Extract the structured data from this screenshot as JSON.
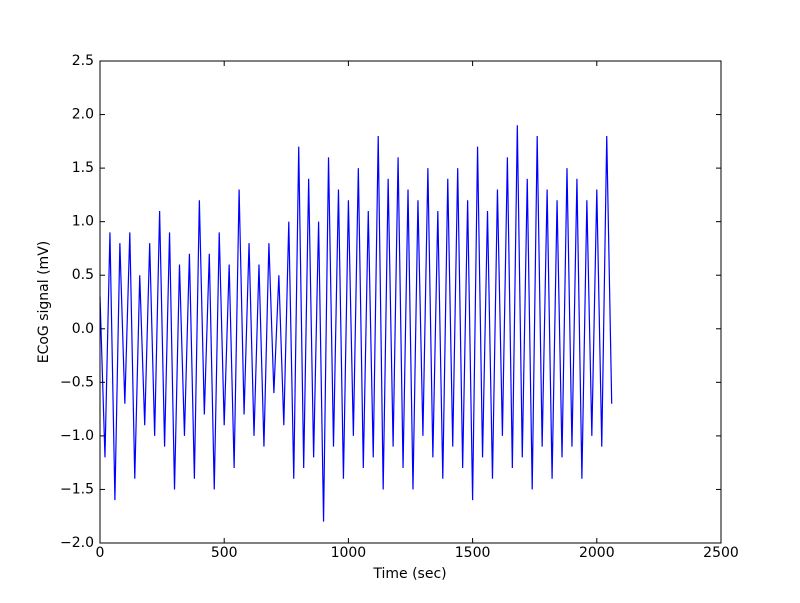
{
  "chart_data": {
    "type": "line",
    "xlabel": "Time (sec)",
    "ylabel": "ECoG signal (mV)",
    "color": "#0000ff",
    "x": [
      0,
      20,
      40,
      60,
      80,
      100,
      120,
      140,
      160,
      180,
      200,
      220,
      240,
      260,
      280,
      300,
      320,
      340,
      360,
      380,
      400,
      420,
      440,
      460,
      480,
      500,
      520,
      540,
      560,
      580,
      600,
      620,
      640,
      660,
      680,
      700,
      720,
      740,
      760,
      780,
      800,
      820,
      840,
      860,
      880,
      900,
      920,
      940,
      960,
      980,
      1000,
      1020,
      1040,
      1060,
      1080,
      1100,
      1120,
      1140,
      1160,
      1180,
      1200,
      1220,
      1240,
      1260,
      1280,
      1300,
      1320,
      1340,
      1360,
      1380,
      1400,
      1420,
      1440,
      1460,
      1480,
      1500,
      1520,
      1540,
      1560,
      1580,
      1600,
      1620,
      1640,
      1660,
      1680,
      1700,
      1720,
      1740,
      1760,
      1780,
      1800,
      1820,
      1840,
      1860,
      1880,
      1900,
      1920,
      1940,
      1960,
      1980,
      2000,
      2020,
      2040,
      2060
    ],
    "values": [
      0.3,
      -1.2,
      0.9,
      -1.6,
      0.8,
      -0.7,
      0.9,
      -1.4,
      0.5,
      -0.9,
      0.8,
      -1.0,
      1.1,
      -1.1,
      0.9,
      -1.5,
      0.6,
      -1.0,
      0.7,
      -1.4,
      1.2,
      -0.8,
      0.7,
      -1.5,
      0.9,
      -0.9,
      0.6,
      -1.3,
      1.3,
      -0.8,
      0.8,
      -1.0,
      0.6,
      -1.1,
      0.8,
      -0.6,
      0.5,
      -0.9,
      1.0,
      -1.4,
      1.7,
      -1.3,
      1.4,
      -1.2,
      1.0,
      -1.8,
      1.6,
      -1.1,
      1.3,
      -1.4,
      1.2,
      -1.0,
      1.5,
      -1.3,
      1.1,
      -1.2,
      1.8,
      -1.5,
      1.4,
      -1.1,
      1.6,
      -1.3,
      1.3,
      -1.5,
      1.2,
      -1.0,
      1.5,
      -1.2,
      1.1,
      -1.4,
      1.4,
      -1.1,
      1.5,
      -1.3,
      1.2,
      -1.6,
      1.7,
      -1.2,
      1.1,
      -1.4,
      1.3,
      -1.0,
      1.6,
      -1.3,
      1.9,
      -1.2,
      1.4,
      -1.5,
      1.8,
      -1.1,
      1.3,
      -1.4,
      1.2,
      -1.2,
      1.5,
      -1.1,
      1.4,
      -1.4,
      1.2,
      -1.0,
      1.3,
      -1.1,
      1.8,
      -0.7
    ],
    "xlim": [
      0,
      2500
    ],
    "xticks": [
      0,
      500,
      1000,
      1500,
      2000,
      2500
    ],
    "ylim": [
      -2,
      2.5
    ],
    "yticks": [
      {
        "value": -2,
        "label": "−2.0"
      },
      {
        "value": -1.5,
        "label": "−1.5"
      },
      {
        "value": -1,
        "label": "−1.0"
      },
      {
        "value": -0.5,
        "label": "−0.5"
      },
      {
        "value": 0,
        "label": "0.0"
      },
      {
        "value": 0.5,
        "label": "0.5"
      },
      {
        "value": 1,
        "label": "1.0"
      },
      {
        "value": 1.5,
        "label": "1.5"
      },
      {
        "value": 2,
        "label": "2.0"
      },
      {
        "value": 2.5,
        "label": "2.5"
      }
    ],
    "grid": false
  }
}
